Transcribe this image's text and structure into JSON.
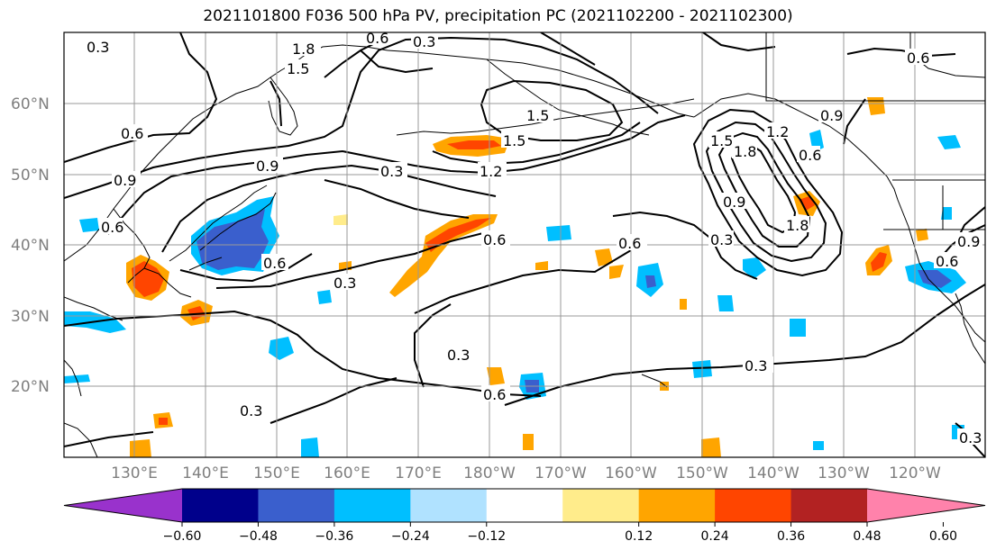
{
  "title": "2021101800 F036 500 hPa PV, precipitation PC (2021102200 - 2021102300)",
  "map": {
    "lat_labels": [
      "60°N",
      "50°N",
      "40°N",
      "30°N",
      "20°N"
    ],
    "lon_labels": [
      "130°E",
      "140°E",
      "150°E",
      "160°E",
      "170°E",
      "180°W",
      "170°W",
      "160°W",
      "150°W",
      "140°W",
      "130°W",
      "120°W"
    ],
    "contour_labels": [
      "0.3",
      "0.6",
      "0.9",
      "1.2",
      "1.5",
      "1.8"
    ]
  },
  "colorbar": {
    "colors": [
      "#9932cc",
      "#00008b",
      "#3a5fcd",
      "#00bfff",
      "#b0e2ff",
      "#ffffff",
      "#ffec8b",
      "#ffa500",
      "#ff4500",
      "#b22222",
      "#ff82ab"
    ],
    "tick_labels": [
      "−0.60",
      "−0.48",
      "−0.36",
      "−0.24",
      "−0.12",
      "0.12",
      "0.24",
      "0.36",
      "0.48",
      "0.60"
    ]
  }
}
